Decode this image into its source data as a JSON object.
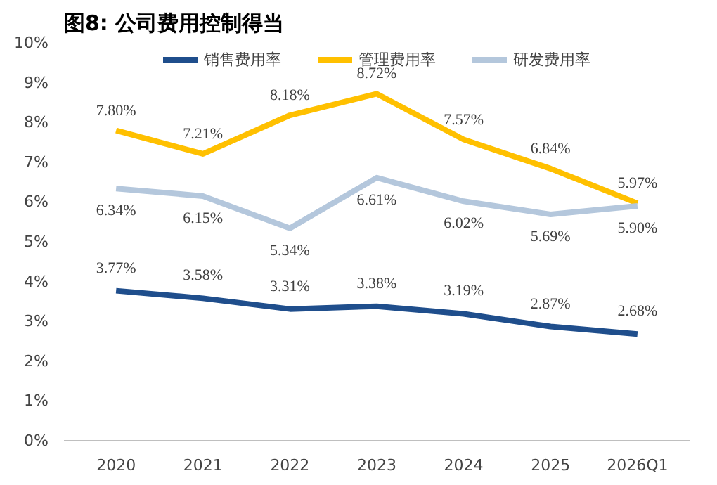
{
  "chart_data": {
    "type": "line",
    "title": "图8: 公司费用控制得当",
    "categories": [
      "2020",
      "2021",
      "2022",
      "2023",
      "2024",
      "2025",
      "2026Q1"
    ],
    "series": [
      {
        "name": "销售费用率",
        "color": "#1f4e8c",
        "values": [
          3.77,
          3.58,
          3.31,
          3.38,
          3.19,
          2.87,
          2.68
        ],
        "value_labels": [
          "3.77%",
          "3.58%",
          "3.31%",
          "3.38%",
          "3.19%",
          "2.87%",
          "2.68%"
        ]
      },
      {
        "name": "管理费用率",
        "color": "#ffc000",
        "values": [
          7.8,
          7.21,
          8.18,
          8.72,
          7.57,
          6.84,
          5.97
        ],
        "value_labels": [
          "7.80%",
          "7.21%",
          "8.18%",
          "8.72%",
          "7.57%",
          "6.84%",
          "5.97%"
        ]
      },
      {
        "name": "研发费用率",
        "color": "#b4c7dc",
        "values": [
          6.34,
          6.15,
          5.34,
          6.61,
          6.02,
          5.69,
          5.9
        ],
        "value_labels": [
          "6.34%",
          "6.15%",
          "5.34%",
          "6.61%",
          "6.02%",
          "5.69%",
          "5.90%"
        ]
      }
    ],
    "ylim": [
      0,
      10
    ],
    "yticks": [
      {
        "value": 0,
        "label": "0%"
      },
      {
        "value": 1,
        "label": "1%"
      },
      {
        "value": 2,
        "label": "2%"
      },
      {
        "value": 3,
        "label": "3%"
      },
      {
        "value": 4,
        "label": "4%"
      },
      {
        "value": 5,
        "label": "5%"
      },
      {
        "value": 6,
        "label": "6%"
      },
      {
        "value": 7,
        "label": "7%"
      },
      {
        "value": 8,
        "label": "8%"
      },
      {
        "value": 9,
        "label": "9%"
      },
      {
        "value": 10,
        "label": "10%"
      }
    ],
    "grid": false,
    "legend": "top",
    "marker": "none",
    "line_style": "solid"
  }
}
